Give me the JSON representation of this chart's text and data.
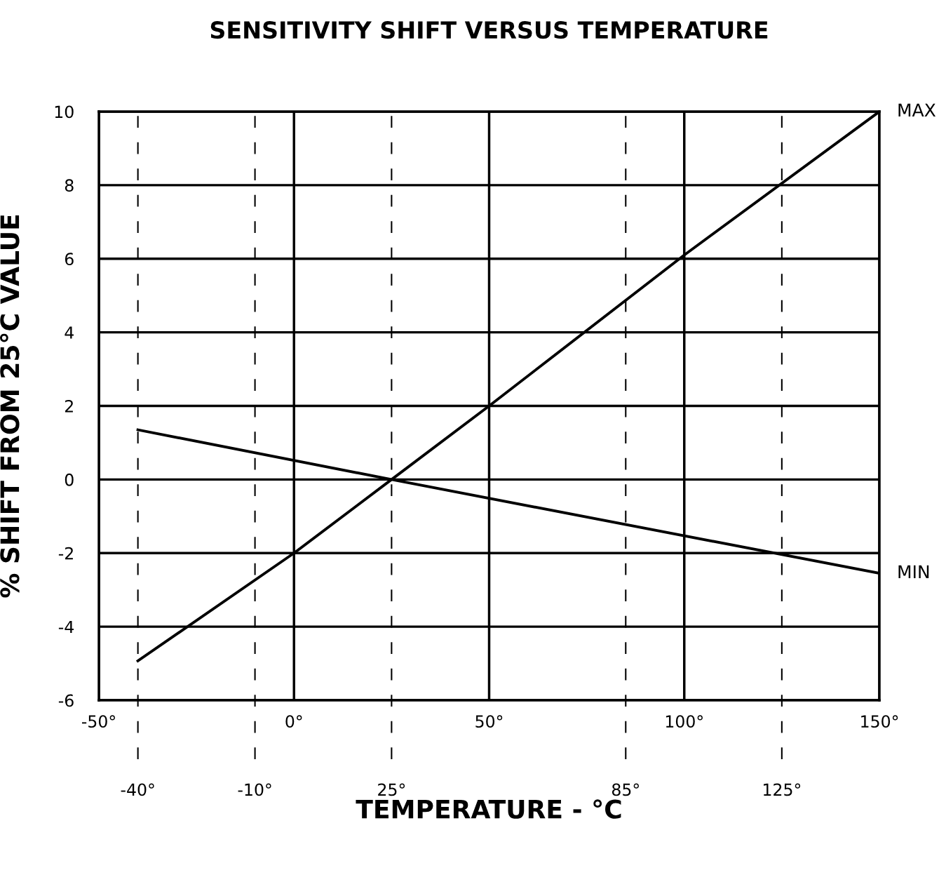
{
  "chart_data": {
    "type": "line",
    "title": "SENSITIVITY SHIFT VERSUS TEMPERATURE",
    "xlabel": "TEMPERATURE - °C",
    "ylabel": "% SHIFT FROM 25°C VALUE",
    "series": [
      {
        "name": "MAX",
        "color": "#000000",
        "x": [
          -40,
          0,
          25,
          50,
          100,
          150
        ],
        "values": [
          -4.93,
          -2.0,
          0,
          2.0,
          6.1,
          10
        ]
      },
      {
        "name": "MIN",
        "color": "#000000",
        "x": [
          -40,
          25,
          150
        ],
        "values": [
          1.35,
          0,
          -2.55
        ]
      }
    ],
    "xlim": [
      -50,
      150
    ],
    "ylim": [
      -6,
      10
    ],
    "xticks": [
      {
        "value": -50,
        "label": "-50°"
      },
      {
        "value": 0,
        "label": "0°"
      },
      {
        "value": 50,
        "label": "50°"
      },
      {
        "value": 100,
        "label": "100°"
      },
      {
        "value": 150,
        "label": "150°"
      }
    ],
    "yticks": [
      -6,
      -4,
      -2,
      0,
      2,
      4,
      6,
      8,
      10
    ],
    "ref_lines": [
      {
        "axis": "x",
        "value": -40,
        "label": "-40°",
        "line_style": "dashed"
      },
      {
        "axis": "x",
        "value": -10,
        "label": "-10°",
        "line_style": "dashed"
      },
      {
        "axis": "x",
        "value": 25,
        "label": "25°",
        "line_style": "dashed"
      },
      {
        "axis": "x",
        "value": 85,
        "label": "85°",
        "line_style": "dashed"
      },
      {
        "axis": "x",
        "value": 125,
        "label": "125°",
        "line_style": "dashed"
      }
    ],
    "grid": true,
    "line_style": "solid",
    "marker": "none"
  }
}
